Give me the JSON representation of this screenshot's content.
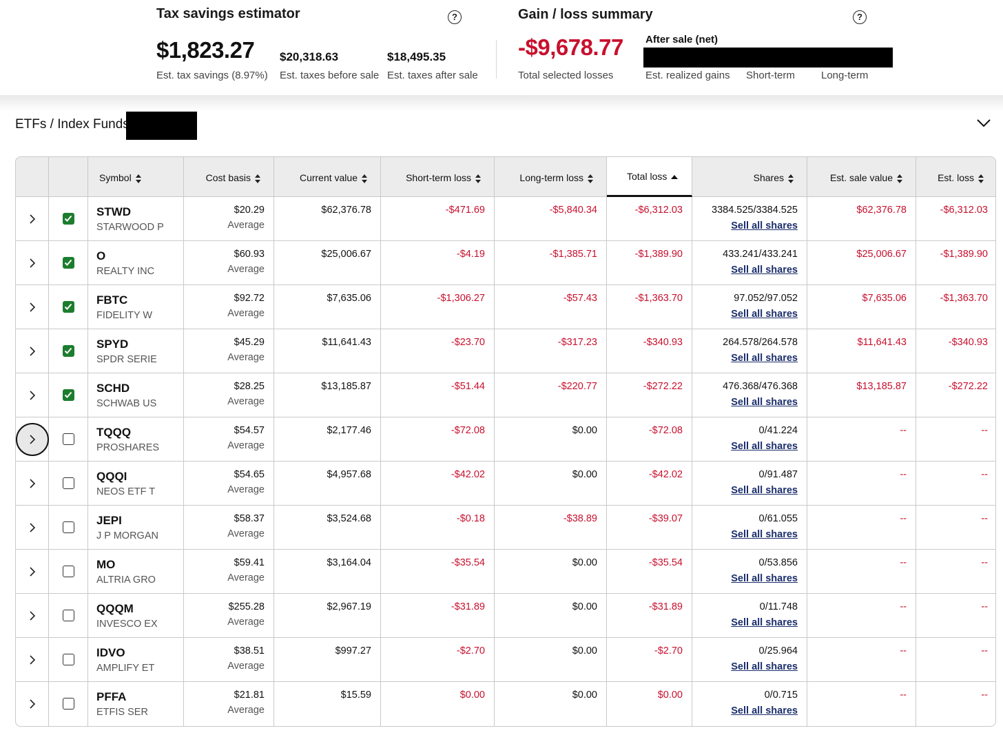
{
  "tax_savings": {
    "title": "Tax savings estimator",
    "help_icon": "?",
    "savings_value": "$1,823.27",
    "savings_caption": "Est. tax savings (8.97%)",
    "before_value": "$20,318.63",
    "before_caption": "Est. taxes before sale",
    "after_value": "$18,495.35",
    "after_caption": "Est. taxes after sale"
  },
  "gain_loss": {
    "title": "Gain / loss summary",
    "help_icon": "?",
    "total_value": "-$9,678.77",
    "total_caption": "Total selected losses",
    "after_sale_label": "After sale (net)",
    "realized_caption": "Est. realized gains",
    "short_term_caption": "Short-term",
    "long_term_caption": "Long-term"
  },
  "section": {
    "title": "ETFs / Index Funds",
    "collapse_icon": "chevron-down-icon"
  },
  "colors": {
    "loss_red": "#c8102e",
    "checkbox_green": "#1d7d2e",
    "link_navy": "#1b2e6b",
    "header_gray": "#ececec"
  },
  "table": {
    "columns": {
      "symbol": "Symbol",
      "cost_basis": "Cost basis",
      "current_value": "Current value",
      "short_term_loss": "Short-term loss",
      "long_term_loss": "Long-term loss",
      "total_loss": "Total loss",
      "shares": "Shares",
      "est_sale_value": "Est. sale value",
      "est_loss": "Est. loss"
    },
    "sorted_column": "total_loss",
    "sort_direction": "ascending",
    "average_label": "Average",
    "sell_link_label": "Sell all shares",
    "rows": [
      {
        "symbol": "STWD",
        "name": "STARWOOD P",
        "checked": true,
        "cost": "$20.29",
        "current": "$62,376.78",
        "st_loss": "-$471.69",
        "lt_loss": "-$5,840.34",
        "total": "-$6,312.03",
        "shares": "3384.525/3384.525",
        "sale_value": "$62,376.78",
        "est_loss": "-$6,312.03"
      },
      {
        "symbol": "O",
        "name": "REALTY INC",
        "checked": true,
        "cost": "$60.93",
        "current": "$25,006.67",
        "st_loss": "-$4.19",
        "lt_loss": "-$1,385.71",
        "total": "-$1,389.90",
        "shares": "433.241/433.241",
        "sale_value": "$25,006.67",
        "est_loss": "-$1,389.90"
      },
      {
        "symbol": "FBTC",
        "name": "FIDELITY W",
        "checked": true,
        "cost": "$92.72",
        "current": "$7,635.06",
        "st_loss": "-$1,306.27",
        "lt_loss": "-$57.43",
        "total": "-$1,363.70",
        "shares": "97.052/97.052",
        "sale_value": "$7,635.06",
        "est_loss": "-$1,363.70"
      },
      {
        "symbol": "SPYD",
        "name": "SPDR SERIE",
        "checked": true,
        "cost": "$45.29",
        "current": "$11,641.43",
        "st_loss": "-$23.70",
        "lt_loss": "-$317.23",
        "total": "-$340.93",
        "shares": "264.578/264.578",
        "sale_value": "$11,641.43",
        "est_loss": "-$340.93"
      },
      {
        "symbol": "SCHD",
        "name": "SCHWAB US",
        "checked": true,
        "cost": "$28.25",
        "current": "$13,185.87",
        "st_loss": "-$51.44",
        "lt_loss": "-$220.77",
        "total": "-$272.22",
        "shares": "476.368/476.368",
        "sale_value": "$13,185.87",
        "est_loss": "-$272.22"
      },
      {
        "symbol": "TQQQ",
        "name": "PROSHARES",
        "checked": false,
        "cost": "$54.57",
        "current": "$2,177.46",
        "st_loss": "-$72.08",
        "lt_loss": "$0.00",
        "total": "-$72.08",
        "shares": "0/41.224",
        "sale_value": "--",
        "est_loss": "--"
      },
      {
        "symbol": "QQQI",
        "name": "NEOS ETF T",
        "checked": false,
        "cost": "$54.65",
        "current": "$4,957.68",
        "st_loss": "-$42.02",
        "lt_loss": "$0.00",
        "total": "-$42.02",
        "shares": "0/91.487",
        "sale_value": "--",
        "est_loss": "--"
      },
      {
        "symbol": "JEPI",
        "name": "J P MORGAN",
        "checked": false,
        "cost": "$58.37",
        "current": "$3,524.68",
        "st_loss": "-$0.18",
        "lt_loss": "-$38.89",
        "total": "-$39.07",
        "shares": "0/61.055",
        "sale_value": "--",
        "est_loss": "--"
      },
      {
        "symbol": "MO",
        "name": "ALTRIA GRO",
        "checked": false,
        "cost": "$59.41",
        "current": "$3,164.04",
        "st_loss": "-$35.54",
        "lt_loss": "$0.00",
        "total": "-$35.54",
        "shares": "0/53.856",
        "sale_value": "--",
        "est_loss": "--"
      },
      {
        "symbol": "QQQM",
        "name": "INVESCO EX",
        "checked": false,
        "cost": "$255.28",
        "current": "$2,967.19",
        "st_loss": "-$31.89",
        "lt_loss": "$0.00",
        "total": "-$31.89",
        "shares": "0/11.748",
        "sale_value": "--",
        "est_loss": "--"
      },
      {
        "symbol": "IDVO",
        "name": "AMPLIFY ET",
        "checked": false,
        "cost": "$38.51",
        "current": "$997.27",
        "st_loss": "-$2.70",
        "lt_loss": "$0.00",
        "total": "-$2.70",
        "shares": "0/25.964",
        "sale_value": "--",
        "est_loss": "--"
      },
      {
        "symbol": "PFFA",
        "name": "ETFIS SER",
        "checked": false,
        "cost": "$21.81",
        "current": "$15.59",
        "st_loss": "$0.00",
        "lt_loss": "$0.00",
        "total": "$0.00",
        "shares": "0/0.715",
        "sale_value": "--",
        "est_loss": "--"
      }
    ]
  }
}
